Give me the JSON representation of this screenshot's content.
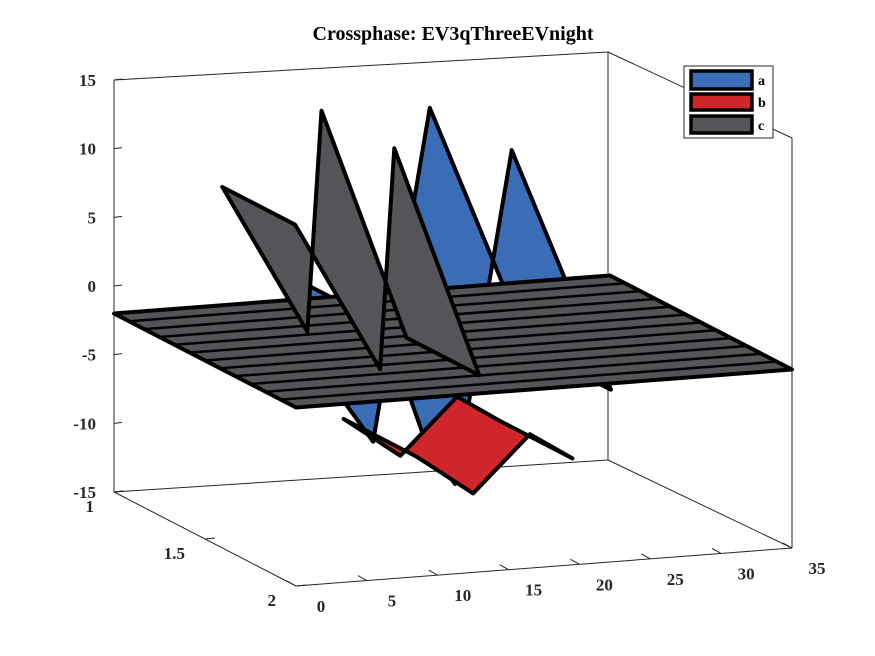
{
  "chart_data": {
    "type": "area",
    "title": "Crossphase: EV3qThreeEVnight",
    "xlabel": "",
    "ylabel": "",
    "zlabel": "",
    "xlim": [
      0,
      35
    ],
    "ylim": [
      1,
      2
    ],
    "zlim": [
      -15,
      15
    ],
    "x_ticks": [
      "0",
      "5",
      "10",
      "15",
      "20",
      "25",
      "30",
      "35"
    ],
    "y_ticks": [
      "1",
      "1.5",
      "2"
    ],
    "z_ticks": [
      "15",
      "10",
      "5",
      "0",
      "-5",
      "-10",
      "-15"
    ],
    "grid": false,
    "legend_position": "top-right",
    "series": [
      {
        "name": "a",
        "color": "#3a6db5",
        "points": [
          [
            12,
            0
          ],
          [
            15,
            -9
          ],
          [
            17,
            -12
          ],
          [
            21,
            12
          ],
          [
            28,
            -6
          ]
        ]
      },
      {
        "name": "b",
        "color": "#d0262b",
        "points": [
          [
            13,
            -9
          ],
          [
            17,
            -12
          ],
          [
            21,
            -8
          ],
          [
            24,
            -10
          ]
        ]
      },
      {
        "name": "c",
        "color": "#555559",
        "points": [
          [
            7,
            7
          ],
          [
            13,
            -4
          ],
          [
            14,
            12
          ],
          [
            20,
            -5
          ]
        ]
      }
    ],
    "floor_plane": {
      "z": -2,
      "color": "#555559"
    }
  }
}
